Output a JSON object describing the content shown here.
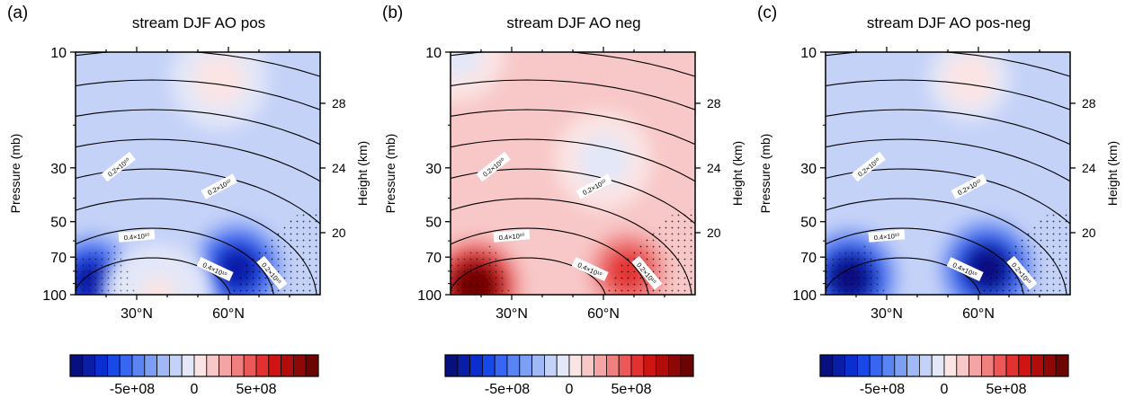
{
  "chart_data": [
    {
      "type": "heatmap",
      "letter": "(a)",
      "title": "stream DJF AO pos",
      "xlabel": "",
      "ylabel": "Pressure (mb)",
      "ylabel_right": "Height (km)",
      "x_ticks": [
        "30°N",
        "60°N"
      ],
      "y_ticks": [
        "10",
        "30",
        "50",
        "70",
        "100"
      ],
      "y_right_ticks": [
        "28",
        "24",
        "20"
      ],
      "contour_labels": [
        "0.2×10¹⁰",
        "0.2×10¹⁰",
        "0.4×10¹⁰",
        "0.4×10¹⁰",
        "0.2×10¹⁰"
      ],
      "colorbar_labels": [
        "-5e+08",
        "0",
        "5e+08"
      ],
      "color_range": [
        -1000000000.0,
        1000000000.0
      ],
      "background_value": -120000000.0,
      "features": [
        {
          "value": -900000000.0,
          "lat": 15,
          "p": 88
        },
        {
          "value": -900000000.0,
          "lat": 63,
          "p": 78
        },
        {
          "value": 30000000.0,
          "lat": 57,
          "p": 13
        },
        {
          "value": 20000000.0,
          "lat": 37,
          "p": 100
        }
      ],
      "stippled": true
    },
    {
      "type": "heatmap",
      "letter": "(b)",
      "title": "stream DJF AO neg",
      "xlabel": "",
      "ylabel": "Pressure (mb)",
      "ylabel_right": "Height (km)",
      "x_ticks": [
        "30°N",
        "60°N"
      ],
      "y_ticks": [
        "10",
        "30",
        "50",
        "70",
        "100"
      ],
      "y_right_ticks": [
        "28",
        "24",
        "20"
      ],
      "contour_labels": [
        "0.2×10¹⁰",
        "0.2×10¹⁰",
        "0.4×10¹⁰",
        "0.4×10¹⁰",
        "0.2×10¹⁰"
      ],
      "colorbar_labels": [
        "-5e+08",
        "0",
        "5e+08"
      ],
      "color_range": [
        -1000000000.0,
        1000000000.0
      ],
      "background_value": 120000000.0,
      "features": [
        {
          "value": 1000000000.0,
          "lat": 18,
          "p": 92
        },
        {
          "value": 500000000.0,
          "lat": 68,
          "p": 80
        },
        {
          "value": -80000000.0,
          "lat": 60,
          "p": 28
        },
        {
          "value": -60000000.0,
          "lat": 12,
          "p": 10
        }
      ],
      "stippled": true
    },
    {
      "type": "heatmap",
      "letter": "(c)",
      "title": "stream DJF AO pos-neg",
      "xlabel": "",
      "ylabel": "Pressure (mb)",
      "ylabel_right": "Height (km)",
      "x_ticks": [
        "30°N",
        "60°N"
      ],
      "y_ticks": [
        "10",
        "30",
        "50",
        "70",
        "100"
      ],
      "y_right_ticks": [
        "28",
        "24",
        "20"
      ],
      "contour_labels": [
        "0.2×10¹⁰",
        "0.2×10¹⁰",
        "0.4×10¹⁰",
        "0.4×10¹⁰",
        "0.2×10¹⁰"
      ],
      "colorbar_labels": [
        "-5e+08",
        "0",
        "5e+08"
      ],
      "color_range": [
        -1000000000.0,
        1000000000.0
      ],
      "background_value": -150000000.0,
      "features": [
        {
          "value": -1000000000.0,
          "lat": 18,
          "p": 85
        },
        {
          "value": -1000000000.0,
          "lat": 63,
          "p": 78
        },
        {
          "value": 50000000.0,
          "lat": 57,
          "p": 13
        }
      ],
      "stippled": true
    }
  ],
  "colorbar_colors": [
    "#080f7e",
    "#0a1ea5",
    "#0b2ed0",
    "#1848e8",
    "#3865f2",
    "#5a83f3",
    "#7c9ff4",
    "#a0b8f6",
    "#c5d2f8",
    "#e3e7f8",
    "#fbe4e4",
    "#f8c8c8",
    "#f4a4a4",
    "#f07f7f",
    "#ec5858",
    "#e33030",
    "#d01414",
    "#b00c0c",
    "#8e0808",
    "#6d0404"
  ]
}
